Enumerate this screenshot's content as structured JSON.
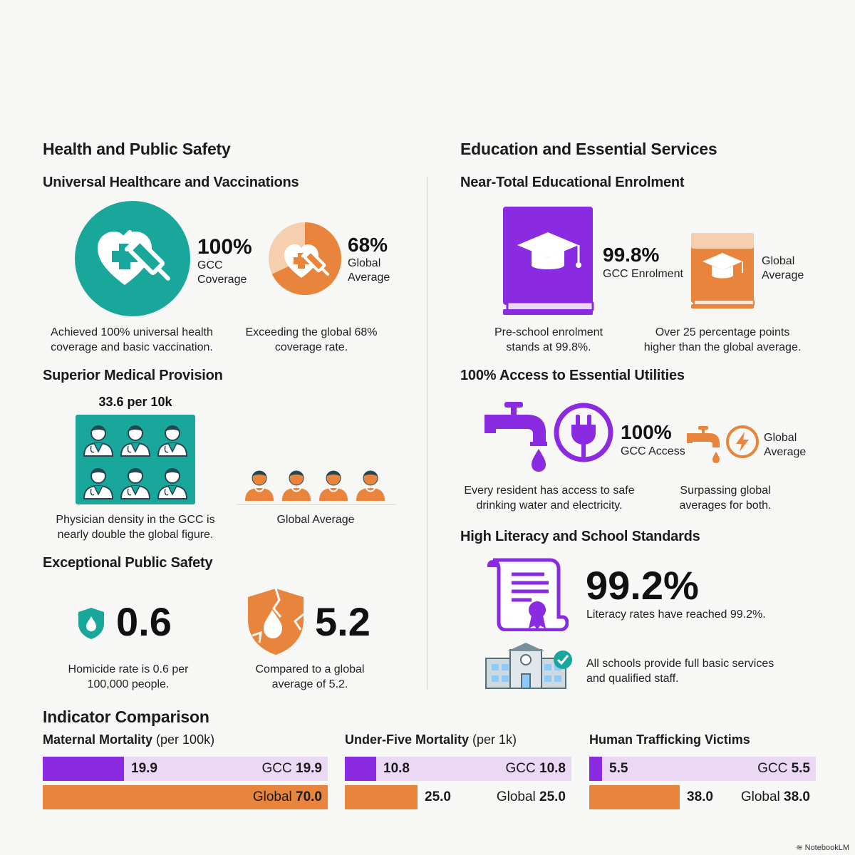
{
  "health": {
    "title": "Health and Public Safety",
    "healthcare": {
      "title": "Universal Healthcare and Vaccinations",
      "gcc_value": "100%",
      "gcc_label_1": "GCC",
      "gcc_label_2": "Coverage",
      "global_value": "68%",
      "global_label_1": "Global",
      "global_label_2": "Average",
      "global_share": 0.68,
      "caption_gcc_1": "Achieved 100% universal health",
      "caption_gcc_2": "coverage and basic vaccination.",
      "caption_global_1": "Exceeding the global 68%",
      "caption_global_2": "coverage rate."
    },
    "medical": {
      "title": "Superior Medical Provision",
      "gcc_value": "33.6 per 10k",
      "gcc_icon_count": 6,
      "global_icon_count": 4,
      "caption_gcc_1": "Physician density in the GCC is",
      "caption_gcc_2": "nearly double the global figure.",
      "caption_global": "Global Average"
    },
    "safety": {
      "title": "Exceptional Public Safety",
      "gcc_value": "0.6",
      "global_value": "5.2",
      "caption_gcc_1": "Homicide rate is 0.6 per",
      "caption_gcc_2": "100,000 people.",
      "caption_global_1": "Compared to a global",
      "caption_global_2": "average of 5.2."
    }
  },
  "education": {
    "title": "Education and Essential Services",
    "enrolment": {
      "title": "Near-Total Educational Enrolment",
      "gcc_value": "99.8%",
      "gcc_label": "GCC Enrolment",
      "global_label_1": "Global",
      "global_label_2": "Average",
      "caption_gcc_1": "Pre-school enrolment",
      "caption_gcc_2": "stands at 99.8%.",
      "caption_global_1": "Over 25 percentage points",
      "caption_global_2": "higher than the global average."
    },
    "utilities": {
      "title": "100% Access to Essential Utilities",
      "gcc_value": "100%",
      "gcc_label": "GCC Access",
      "global_label_1": "Global",
      "global_label_2": "Average",
      "caption_gcc_1": "Every resident has access to safe",
      "caption_gcc_2": "drinking water and electricity.",
      "caption_global_1": "Surpassing global",
      "caption_global_2": "averages for both."
    },
    "literacy": {
      "title": "High Literacy and School Standards",
      "value": "99.2%",
      "caption": "Literacy rates have reached 99.2%.",
      "schools_1": "All schools provide full basic services",
      "schools_2": "and qualified staff."
    }
  },
  "comparison": {
    "title": "Indicator Comparison",
    "indicators": [
      {
        "name": "Maternal Mortality",
        "unit": " (per 100k)",
        "gcc": 19.9,
        "global": 70.0,
        "gcc_text": "19.9",
        "global_text": "70.0",
        "gcc_prefix": "GCC ",
        "global_prefix": "Global ",
        "scale_max": 70.0
      },
      {
        "name": "Under-Five Mortality",
        "unit": " (per 1k)",
        "gcc": 10.8,
        "global": 25.0,
        "gcc_text": "10.8",
        "global_text": "25.0",
        "gcc_prefix": "GCC ",
        "global_prefix": "Global ",
        "scale_max": 78.0
      },
      {
        "name": "Human Trafficking Victims",
        "unit": "",
        "gcc": 5.5,
        "global": 38.0,
        "gcc_text": "5.5",
        "global_text": "38.0",
        "gcc_prefix": "GCC ",
        "global_prefix": "Global ",
        "scale_max": 95.0
      }
    ]
  },
  "colors": {
    "teal": "#1aa79b",
    "purple": "#8a2be2",
    "lavender": "#ead8f5",
    "orange": "#e8843c",
    "light_orange": "#f6cfae"
  },
  "footer": {
    "logo": "NotebookLM"
  }
}
